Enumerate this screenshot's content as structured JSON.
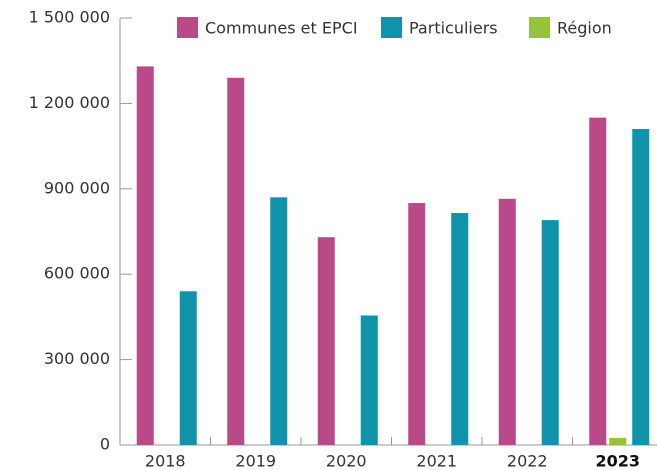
{
  "chart_data": {
    "type": "bar",
    "categories": [
      "2018",
      "2019",
      "2020",
      "2021",
      "2022",
      "2023"
    ],
    "bold_category": 5,
    "series": [
      {
        "name": "Communes et EPCI",
        "color": "#b94a87",
        "values": [
          1330000,
          1290000,
          730000,
          850000,
          865000,
          1150000
        ]
      },
      {
        "name": "Particuliers",
        "color": "#0e93a8",
        "values": [
          540000,
          870000,
          455000,
          815000,
          790000,
          1110000
        ]
      },
      {
        "name": "Région",
        "color": "#96c23c",
        "values": [
          0,
          0,
          0,
          0,
          0,
          25000
        ]
      }
    ],
    "ylim": [
      0,
      1500000
    ],
    "yticks": [
      0,
      {
        "value": 300000,
        "label": "300 000"
      },
      {
        "value": 600000,
        "label": "600 000"
      },
      {
        "value": 900000,
        "label": "900 000"
      },
      {
        "value": 1200000,
        "label": "1 200 000"
      },
      {
        "value": 1500000,
        "label": "1 500 000"
      }
    ],
    "legend": "top"
  }
}
